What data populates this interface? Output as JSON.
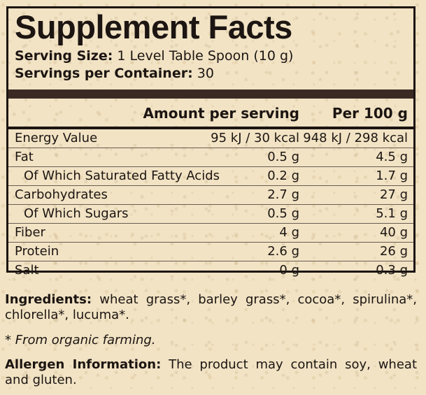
{
  "title": "Supplement Facts",
  "serving": {
    "size_label": "Serving Size:",
    "size_value": "1 Level Table Spoon (10 g)",
    "count_label": "Servings per Container:",
    "count_value": "30"
  },
  "table": {
    "col_amount": "Amount per serving",
    "col_per100": "Per 100 g",
    "rows": [
      {
        "label": "Energy Value",
        "serving": "95 kJ / 30 kcal",
        "per100": "948 kJ / 298 kcal"
      },
      {
        "label": "Fat",
        "serving": "0.5 g",
        "per100": "4.5 g"
      },
      {
        "label": "Of Which Saturated Fatty Acids",
        "serving": "0.2 g",
        "per100": "1.7 g"
      },
      {
        "label": "Carbohydrates",
        "serving": "2.7 g",
        "per100": "27 g"
      },
      {
        "label": "Of Which Sugars",
        "serving": "0.5 g",
        "per100": "5.1 g"
      },
      {
        "label": "Fiber",
        "serving": "4 g",
        "per100": "40 g"
      },
      {
        "label": "Protein",
        "serving": "2.6 g",
        "per100": "26 g"
      },
      {
        "label": "Salt",
        "serving": "0 g",
        "per100": "0.3 g"
      }
    ]
  },
  "ingredients": {
    "label": "Ingredients:",
    "text": "wheat grass*, barley grass*, cocoa*, spirulina*, chlorella*, lucuma*."
  },
  "organic_note": "* From organic farming.",
  "allergen": {
    "label": "Allergen Information:",
    "text": "The product may contain soy, wheat and gluten."
  }
}
